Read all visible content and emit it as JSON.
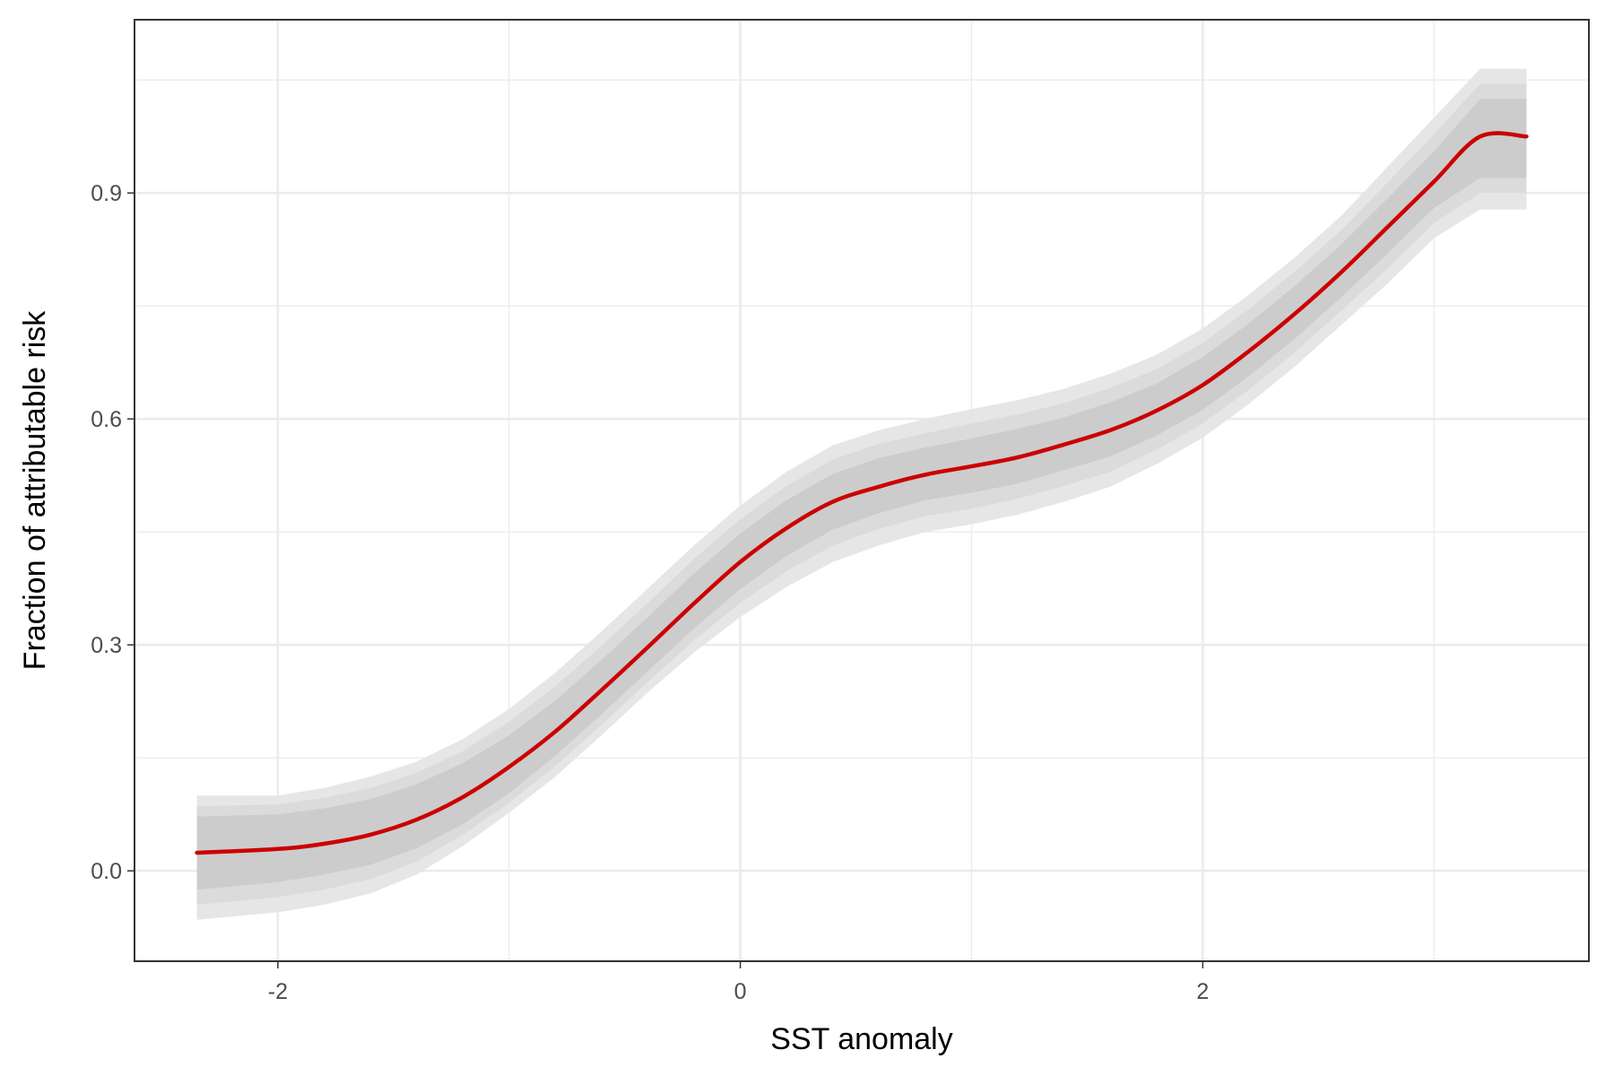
{
  "chart_data": {
    "type": "line",
    "title": "",
    "xlabel": "SST anomaly",
    "ylabel": "Fraction of attributable risk",
    "xlim": [
      -2.62,
      3.67
    ],
    "ylim": [
      -0.12,
      1.13
    ],
    "x_major_ticks": [
      -2,
      0,
      2
    ],
    "x_tick_labels": [
      "-2",
      "0",
      "2"
    ],
    "x_minor_gridlines": [
      -1,
      1,
      3
    ],
    "y_major_ticks": [
      0.0,
      0.3,
      0.6,
      0.9
    ],
    "y_tick_labels": [
      "0.0",
      "0.3",
      "0.6",
      "0.9"
    ],
    "y_minor_gridlines": [
      0.15,
      0.45,
      0.75,
      1.05
    ],
    "grid": true,
    "legend": "none",
    "colors": {
      "line": "#cc0000",
      "band_outer": "#e6e6e6",
      "band_middle": "#dbdbdb",
      "band_inner": "#cccccc",
      "grid": "#ebebeb",
      "panel_border": "#333333"
    },
    "series": [
      {
        "x": [
          -2.35,
          -2.0,
          -1.8,
          -1.6,
          -1.4,
          -1.2,
          -1.0,
          -0.8,
          -0.6,
          -0.4,
          -0.2,
          0.0,
          0.2,
          0.4,
          0.6,
          0.8,
          1.0,
          1.2,
          1.4,
          1.6,
          1.8,
          2.0,
          2.2,
          2.4,
          2.6,
          2.8,
          3.0,
          3.2,
          3.4
        ],
        "y": [
          0.024,
          0.029,
          0.036,
          0.048,
          0.068,
          0.098,
          0.138,
          0.185,
          0.24,
          0.297,
          0.355,
          0.41,
          0.455,
          0.49,
          0.51,
          0.526,
          0.537,
          0.549,
          0.566,
          0.585,
          0.611,
          0.645,
          0.69,
          0.74,
          0.795,
          0.855,
          0.915,
          0.975,
          0.975
        ],
        "band_outer_lower": [
          -0.065,
          -0.055,
          -0.045,
          -0.03,
          -0.005,
          0.033,
          0.077,
          0.125,
          0.18,
          0.237,
          0.29,
          0.337,
          0.377,
          0.41,
          0.432,
          0.45,
          0.46,
          0.473,
          0.49,
          0.51,
          0.54,
          0.575,
          0.62,
          0.67,
          0.725,
          0.78,
          0.84,
          0.878,
          0.878
        ],
        "band_outer_upper": [
          0.1,
          0.1,
          0.11,
          0.125,
          0.145,
          0.175,
          0.215,
          0.263,
          0.318,
          0.375,
          0.432,
          0.485,
          0.53,
          0.565,
          0.585,
          0.6,
          0.613,
          0.625,
          0.64,
          0.66,
          0.685,
          0.72,
          0.765,
          0.815,
          0.87,
          0.935,
          1.0,
          1.065,
          1.065
        ],
        "band_inner_lower": [
          -0.025,
          -0.015,
          -0.005,
          0.008,
          0.03,
          0.062,
          0.103,
          0.153,
          0.208,
          0.265,
          0.322,
          0.374,
          0.418,
          0.453,
          0.475,
          0.492,
          0.502,
          0.514,
          0.532,
          0.55,
          0.578,
          0.612,
          0.657,
          0.707,
          0.762,
          0.82,
          0.88,
          0.92,
          0.92
        ],
        "band_inner_upper": [
          0.072,
          0.075,
          0.083,
          0.095,
          0.115,
          0.143,
          0.18,
          0.226,
          0.28,
          0.337,
          0.395,
          0.448,
          0.492,
          0.527,
          0.548,
          0.562,
          0.574,
          0.587,
          0.602,
          0.622,
          0.647,
          0.682,
          0.727,
          0.777,
          0.832,
          0.893,
          0.955,
          1.025,
          1.025
        ],
        "band_middle_lower": [
          -0.045,
          -0.035,
          -0.025,
          -0.011,
          0.012,
          0.048,
          0.09,
          0.139,
          0.194,
          0.251,
          0.306,
          0.356,
          0.398,
          0.432,
          0.454,
          0.471,
          0.481,
          0.494,
          0.511,
          0.53,
          0.559,
          0.594,
          0.639,
          0.689,
          0.744,
          0.8,
          0.86,
          0.9,
          0.9
        ],
        "band_middle_upper": [
          0.086,
          0.088,
          0.097,
          0.11,
          0.13,
          0.159,
          0.198,
          0.245,
          0.299,
          0.356,
          0.414,
          0.467,
          0.511,
          0.546,
          0.567,
          0.581,
          0.594,
          0.606,
          0.621,
          0.641,
          0.666,
          0.701,
          0.746,
          0.796,
          0.851,
          0.914,
          0.978,
          1.045,
          1.045
        ]
      }
    ]
  }
}
